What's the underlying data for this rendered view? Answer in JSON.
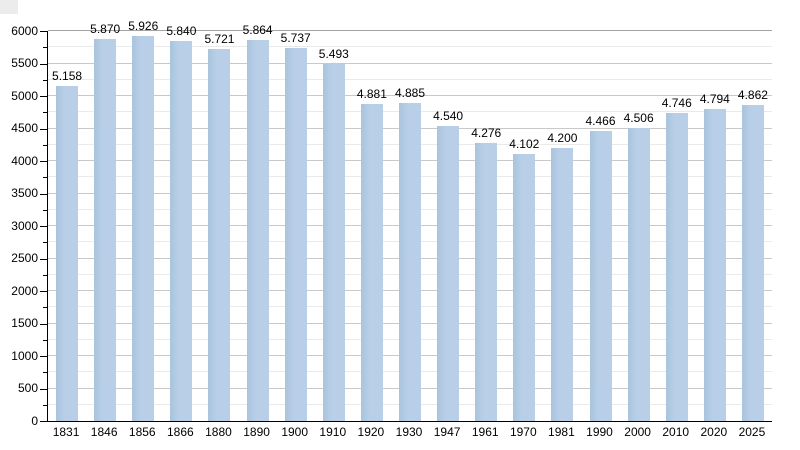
{
  "chart_data": {
    "type": "bar",
    "title": "",
    "xlabel": "",
    "ylabel": "",
    "categories": [
      "1831",
      "1846",
      "1856",
      "1866",
      "1880",
      "1890",
      "1900",
      "1910",
      "1920",
      "1930",
      "1947",
      "1961",
      "1970",
      "1981",
      "1990",
      "2000",
      "2010",
      "2020",
      "2025"
    ],
    "values": [
      5158,
      5870,
      5926,
      5840,
      5721,
      5864,
      5737,
      5493,
      4881,
      4885,
      4540,
      4276,
      4102,
      4200,
      4466,
      4506,
      4746,
      4794,
      4862
    ],
    "value_labels": [
      "5.158",
      "5.870",
      "5.926",
      "5.840",
      "5.721",
      "5.864",
      "5.737",
      "5.493",
      "4.881",
      "4.885",
      "4.540",
      "4.276",
      "4.102",
      "4.200",
      "4.466",
      "4.506",
      "4.746",
      "4.794",
      "4.862"
    ],
    "ylim": [
      0,
      6000
    ],
    "ytick_step_major": 500,
    "ytick_step_minor": 250,
    "ytick_labels": [
      "0",
      "500",
      "1000",
      "1500",
      "2000",
      "2500",
      "3000",
      "3500",
      "4000",
      "4500",
      "5000",
      "5500",
      "6000"
    ],
    "grid": true,
    "legend_position": "none",
    "bar_color": "#b9cfe7",
    "bar_edge_color": "#a9c4de",
    "gridline_major_color": "#c9c9c9",
    "gridline_minor_color": "#eaeaea",
    "gridline_top_color": "#a3a3a3",
    "axis_color": "#000000",
    "background_color": "#ffffff"
  }
}
